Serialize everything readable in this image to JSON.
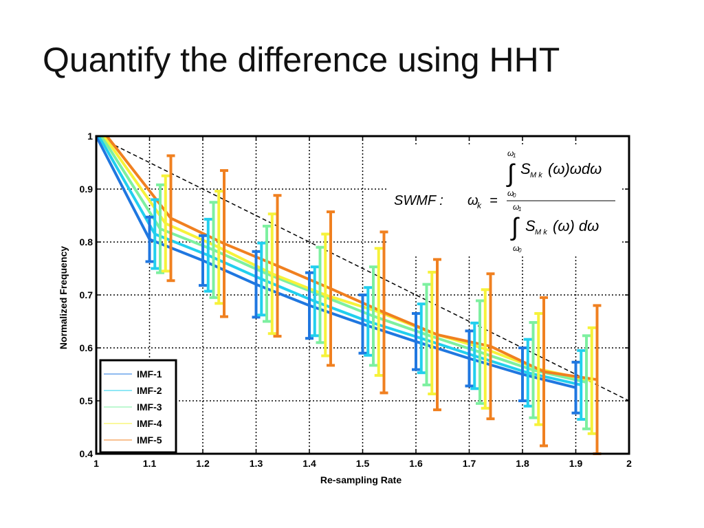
{
  "slide": {
    "title": "Quantify the difference using HHT"
  },
  "chart_data": {
    "type": "line",
    "xlabel": "Re-sampling Rate",
    "ylabel": "Normalized Frequency",
    "xlim": [
      1,
      2
    ],
    "ylim": [
      0.4,
      1
    ],
    "xticks": [
      1,
      1.1,
      1.2,
      1.3,
      1.4,
      1.5,
      1.6,
      1.7,
      1.8,
      1.9,
      2
    ],
    "xtick_labels": [
      "1",
      "1.1",
      "1.2",
      "1.3",
      "1.4",
      "1.5",
      "1.6",
      "1.7",
      "1.8",
      "1.9",
      "2"
    ],
    "yticks": [
      0.4,
      0.5,
      0.6,
      0.7,
      0.8,
      0.9,
      1
    ],
    "ytick_labels": [
      "0.4",
      "0.5",
      "0.6",
      "0.7",
      "0.8",
      "0.9",
      "1"
    ],
    "grid": true,
    "legend_position": "bottom-left",
    "x": [
      1,
      1.1,
      1.2,
      1.3,
      1.4,
      1.5,
      1.6,
      1.7,
      1.8,
      1.9
    ],
    "series": [
      {
        "name": "IMF-1",
        "color": "#1f77e0",
        "x_offset": 0.0,
        "values": [
          1.0,
          0.805,
          0.765,
          0.72,
          0.68,
          0.645,
          0.612,
          0.58,
          0.55,
          0.525
        ],
        "errors": [
          0,
          0.042,
          0.047,
          0.062,
          0.062,
          0.055,
          0.053,
          0.052,
          0.05,
          0.048
        ]
      },
      {
        "name": "IMF-2",
        "color": "#22cfee",
        "x_offset": 0.01,
        "values": [
          1.0,
          0.815,
          0.775,
          0.73,
          0.688,
          0.65,
          0.618,
          0.585,
          0.553,
          0.53
        ],
        "errors": [
          0,
          0.065,
          0.068,
          0.068,
          0.065,
          0.064,
          0.065,
          0.062,
          0.063,
          0.065
        ]
      },
      {
        "name": "IMF-3",
        "color": "#7df0a0",
        "x_offset": 0.02,
        "values": [
          1.0,
          0.825,
          0.785,
          0.74,
          0.7,
          0.66,
          0.625,
          0.592,
          0.558,
          0.535
        ],
        "errors": [
          0,
          0.083,
          0.09,
          0.09,
          0.09,
          0.093,
          0.095,
          0.097,
          0.09,
          0.088
        ]
      },
      {
        "name": "IMF-4",
        "color": "#f6f23a",
        "x_offset": 0.03,
        "values": [
          1.0,
          0.835,
          0.79,
          0.74,
          0.7,
          0.668,
          0.628,
          0.598,
          0.56,
          0.538
        ],
        "errors": [
          0,
          0.09,
          0.106,
          0.113,
          0.115,
          0.12,
          0.115,
          0.112,
          0.105,
          0.1
        ]
      },
      {
        "name": "IMF-5",
        "color": "#f08020",
        "x_offset": 0.04,
        "values": [
          1.0,
          0.845,
          0.797,
          0.755,
          0.712,
          0.667,
          0.625,
          0.603,
          0.555,
          0.54
        ],
        "errors": [
          0,
          0.118,
          0.138,
          0.133,
          0.145,
          0.152,
          0.142,
          0.137,
          0.14,
          0.14
        ]
      }
    ],
    "reference_line": {
      "style": "dashed",
      "color": "#000000",
      "from": [
        1,
        1
      ],
      "to": [
        2,
        0.5
      ]
    },
    "annotation": {
      "label": "SWMF :",
      "lhs": "ω",
      "lhs_sub": "k",
      "equals": "=",
      "integral": "∫",
      "upper_limit": "ω",
      "upper_limit_sub": "1",
      "lower_limit": "ω",
      "lower_limit_sub": "0",
      "numerator": "S",
      "numerator_sub": "M k",
      "numerator_tail": "(ω)ωdω",
      "denominator": "S",
      "denominator_sub": "M k",
      "denominator_tail": "(ω) dω"
    }
  }
}
